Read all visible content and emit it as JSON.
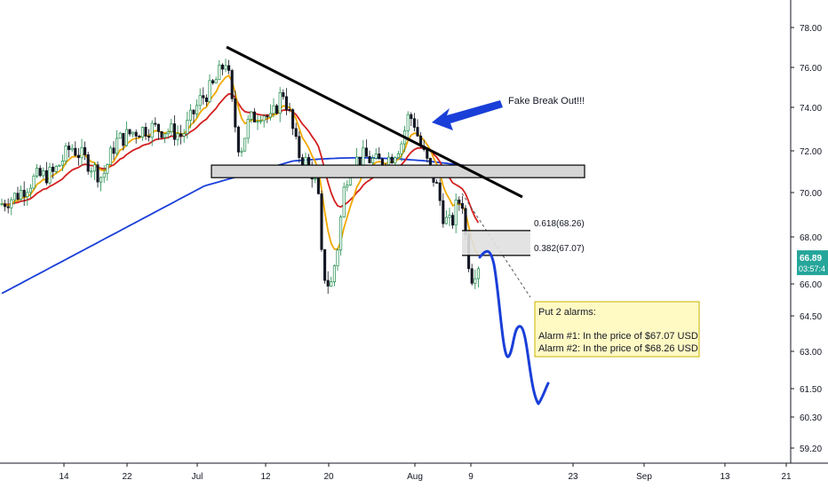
{
  "chart_data": {
    "type": "candlestick",
    "instrument_price": "66.89",
    "countdown": "03:57:4",
    "y_ticks": [
      "78.00",
      "76.00",
      "74.00",
      "72.00",
      "70.00",
      "68.00",
      "66.00",
      "64.50",
      "63.00",
      "61.50",
      "60.30",
      "59.20"
    ],
    "x_ticks": [
      "14",
      "22",
      "Jul",
      "12",
      "20",
      "Aug",
      "9",
      "23",
      "Sep",
      "13",
      "21"
    ],
    "annotations": {
      "fake_breakout": "Fake Break Out!!!",
      "fib_618": "0.618(68.26)",
      "fib_382": "0.382(67.07)",
      "note_title": "Put 2 alarms:",
      "note_line1": "Alarm #1: In the price of $67.07 USD",
      "note_line2": "Alarm #2: In the price of $68.26 USD"
    },
    "support_zone": [
      70.8,
      71.4
    ],
    "fib_levels": [
      68.26,
      67.07
    ],
    "current_price": 66.89,
    "series_colors": {
      "ma_fast": "#f0a800",
      "ma_mid": "#d32020",
      "ma_slow": "#1a3fd8",
      "projection": "#1a3fd8",
      "trendline": "#000000"
    }
  }
}
